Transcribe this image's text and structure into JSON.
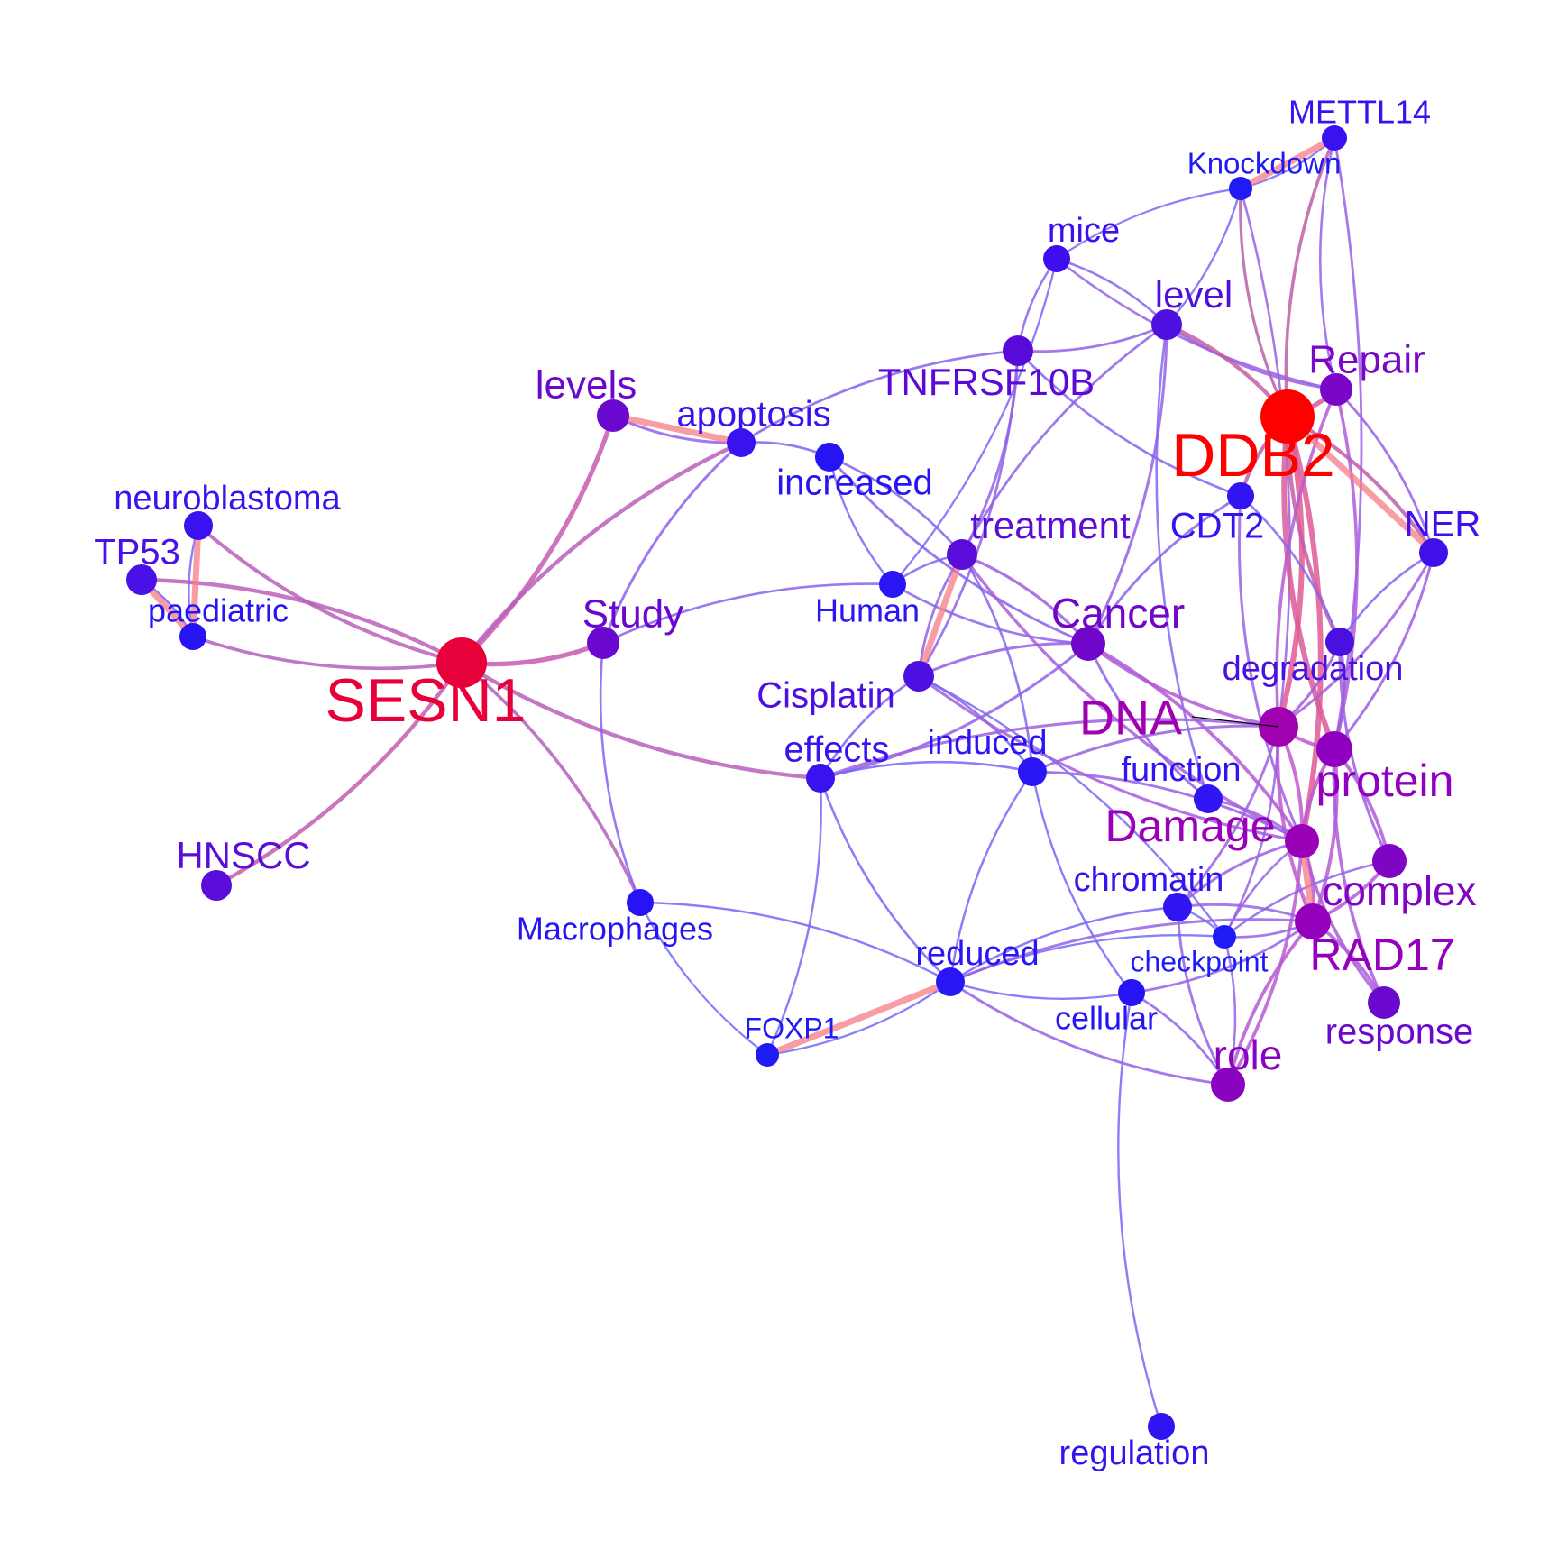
{
  "network": {
    "nodes": [
      {
        "id": "SESN1",
        "label": "SESN1",
        "color": "#e8003a",
        "weight": 1.0
      },
      {
        "id": "DDB2",
        "label": "DDB2",
        "color": "#ff0000",
        "weight": 1.0
      },
      {
        "id": "METTL14",
        "label": "METTL14",
        "color": "#3a12f0",
        "weight": 0.2
      },
      {
        "id": "Knockdown",
        "label": "Knockdown",
        "color": "#1f1bf5",
        "weight": 0.15
      },
      {
        "id": "mice",
        "label": "mice",
        "color": "#3d0ef0",
        "weight": 0.2
      },
      {
        "id": "level",
        "label": "level",
        "color": "#4d10e0",
        "weight": 0.3
      },
      {
        "id": "TNFRSF10B",
        "label": "TNFRSF10B",
        "color": "#5a0ad8",
        "weight": 0.35
      },
      {
        "id": "Repair",
        "label": "Repair",
        "color": "#7a06c8",
        "weight": 0.4
      },
      {
        "id": "levels",
        "label": "levels",
        "color": "#6a08d0",
        "weight": 0.4
      },
      {
        "id": "apoptosis",
        "label": "apoptosis",
        "color": "#3a12f0",
        "weight": 0.3
      },
      {
        "id": "increased",
        "label": "increased",
        "color": "#2614f5",
        "weight": 0.25
      },
      {
        "id": "neuroblastoma",
        "label": "neuroblastoma",
        "color": "#3a12f0",
        "weight": 0.25
      },
      {
        "id": "TP53",
        "label": "TP53",
        "color": "#4a10e8",
        "weight": 0.3
      },
      {
        "id": "paediatric",
        "label": "paediatric",
        "color": "#2614f5",
        "weight": 0.2
      },
      {
        "id": "CDT2",
        "label": "CDT2",
        "color": "#3015f2",
        "weight": 0.25
      },
      {
        "id": "NER",
        "label": "NER",
        "color": "#4010ea",
        "weight": 0.25
      },
      {
        "id": "treatment",
        "label": "treatment",
        "color": "#5a0cd8",
        "weight": 0.35
      },
      {
        "id": "Human",
        "label": "Human",
        "color": "#2a16f5",
        "weight": 0.2
      },
      {
        "id": "Study",
        "label": "Study",
        "color": "#6a08d0",
        "weight": 0.4
      },
      {
        "id": "Cancer",
        "label": "Cancer",
        "color": "#7006c8",
        "weight": 0.45
      },
      {
        "id": "degradation",
        "label": "degradation",
        "color": "#4a10e0",
        "weight": 0.3
      },
      {
        "id": "Cisplatin",
        "label": "Cisplatin",
        "color": "#4d10e0",
        "weight": 0.3
      },
      {
        "id": "DNA",
        "label": "DNA",
        "color": "#a000b0",
        "weight": 0.5
      },
      {
        "id": "protein",
        "label": "protein",
        "color": "#9000c0",
        "weight": 0.5
      },
      {
        "id": "effects",
        "label": "effects",
        "color": "#3a12f0",
        "weight": 0.3
      },
      {
        "id": "induced",
        "label": "induced",
        "color": "#2a16f5",
        "weight": 0.25
      },
      {
        "id": "function",
        "label": "function",
        "color": "#3015f2",
        "weight": 0.25
      },
      {
        "id": "Damage",
        "label": "Damage",
        "color": "#9a00b8",
        "weight": 0.5
      },
      {
        "id": "HNSCC",
        "label": "HNSCC",
        "color": "#5a0cd8",
        "weight": 0.3
      },
      {
        "id": "complex",
        "label": "complex",
        "color": "#8004c4",
        "weight": 0.45
      },
      {
        "id": "chromatin",
        "label": "chromatin",
        "color": "#3015f2",
        "weight": 0.25
      },
      {
        "id": "Macrophages",
        "label": "Macrophages",
        "color": "#2614f5",
        "weight": 0.2
      },
      {
        "id": "RAD17",
        "label": "RAD17",
        "color": "#9500bc",
        "weight": 0.5
      },
      {
        "id": "checkpoint",
        "label": "checkpoint",
        "color": "#1f1bf5",
        "weight": 0.15
      },
      {
        "id": "reduced",
        "label": "reduced",
        "color": "#2a16f5",
        "weight": 0.25
      },
      {
        "id": "cellular",
        "label": "cellular",
        "color": "#2614f5",
        "weight": 0.2
      },
      {
        "id": "FOXP1",
        "label": "FOXP1",
        "color": "#1f1bf5",
        "weight": 0.15
      },
      {
        "id": "response",
        "label": "response",
        "color": "#6a08d0",
        "weight": 0.4
      },
      {
        "id": "role",
        "label": "role",
        "color": "#8a04c0",
        "weight": 0.45
      },
      {
        "id": "regulation",
        "label": "regulation",
        "color": "#3015f2",
        "weight": 0.25
      }
    ],
    "edges": [
      [
        "SESN1",
        "neuroblastoma"
      ],
      [
        "SESN1",
        "TP53"
      ],
      [
        "SESN1",
        "paediatric"
      ],
      [
        "SESN1",
        "levels"
      ],
      [
        "SESN1",
        "apoptosis"
      ],
      [
        "SESN1",
        "Study"
      ],
      [
        "SESN1",
        "HNSCC"
      ],
      [
        "SESN1",
        "effects"
      ],
      [
        "SESN1",
        "Macrophages"
      ],
      [
        "neuroblastoma",
        "paediatric"
      ],
      [
        "TP53",
        "paediatric"
      ],
      [
        "levels",
        "apoptosis"
      ],
      [
        "apoptosis",
        "increased"
      ],
      [
        "apoptosis",
        "Study"
      ],
      [
        "apoptosis",
        "TNFRSF10B"
      ],
      [
        "increased",
        "Human"
      ],
      [
        "increased",
        "treatment"
      ],
      [
        "increased",
        "Cancer"
      ],
      [
        "Study",
        "Human"
      ],
      [
        "Study",
        "Macrophages"
      ],
      [
        "Human",
        "treatment"
      ],
      [
        "Human",
        "Cancer"
      ],
      [
        "mice",
        "Knockdown"
      ],
      [
        "mice",
        "TNFRSF10B"
      ],
      [
        "mice",
        "level"
      ],
      [
        "mice",
        "Repair"
      ],
      [
        "mice",
        "Human"
      ],
      [
        "Knockdown",
        "METTL14"
      ],
      [
        "Knockdown",
        "level"
      ],
      [
        "Knockdown",
        "DDB2"
      ],
      [
        "Knockdown",
        "DNA"
      ],
      [
        "METTL14",
        "DDB2"
      ],
      [
        "METTL14",
        "protein"
      ],
      [
        "METTL14",
        "Repair"
      ],
      [
        "level",
        "TNFRSF10B"
      ],
      [
        "level",
        "Repair"
      ],
      [
        "level",
        "DDB2"
      ],
      [
        "level",
        "treatment"
      ],
      [
        "level",
        "Cancer"
      ],
      [
        "level",
        "function"
      ],
      [
        "TNFRSF10B",
        "treatment"
      ],
      [
        "TNFRSF10B",
        "CDT2"
      ],
      [
        "TNFRSF10B",
        "Cisplatin"
      ],
      [
        "DDB2",
        "Repair"
      ],
      [
        "DDB2",
        "NER"
      ],
      [
        "DDB2",
        "CDT2"
      ],
      [
        "DDB2",
        "DNA"
      ],
      [
        "DDB2",
        "degradation"
      ],
      [
        "DDB2",
        "Damage"
      ],
      [
        "DDB2",
        "protein"
      ],
      [
        "Repair",
        "NER"
      ],
      [
        "Repair",
        "DNA"
      ],
      [
        "Repair",
        "protein"
      ],
      [
        "CDT2",
        "Cancer"
      ],
      [
        "CDT2",
        "degradation"
      ],
      [
        "CDT2",
        "Damage"
      ],
      [
        "NER",
        "DNA"
      ],
      [
        "NER",
        "degradation"
      ],
      [
        "NER",
        "protein"
      ],
      [
        "treatment",
        "Cisplatin"
      ],
      [
        "treatment",
        "Cancer"
      ],
      [
        "treatment",
        "Damage"
      ],
      [
        "treatment",
        "induced"
      ],
      [
        "Cancer",
        "Cisplatin"
      ],
      [
        "Cancer",
        "effects"
      ],
      [
        "Cancer",
        "DNA"
      ],
      [
        "Cancer",
        "Damage"
      ],
      [
        "Cancer",
        "function"
      ],
      [
        "degradation",
        "DNA"
      ],
      [
        "degradation",
        "complex"
      ],
      [
        "degradation",
        "protein"
      ],
      [
        "Cisplatin",
        "effects"
      ],
      [
        "Cisplatin",
        "induced"
      ],
      [
        "Cisplatin",
        "Damage"
      ],
      [
        "Cisplatin",
        "checkpoint"
      ],
      [
        "DNA",
        "protein"
      ],
      [
        "DNA",
        "Damage"
      ],
      [
        "DNA",
        "effects"
      ],
      [
        "DNA",
        "chromatin"
      ],
      [
        "DNA",
        "RAD17"
      ],
      [
        "DNA",
        "checkpoint"
      ],
      [
        "DNA",
        "induced"
      ],
      [
        "protein",
        "complex"
      ],
      [
        "protein",
        "Damage"
      ],
      [
        "protein",
        "RAD17"
      ],
      [
        "protein",
        "response"
      ],
      [
        "effects",
        "induced"
      ],
      [
        "effects",
        "reduced"
      ],
      [
        "effects",
        "FOXP1"
      ],
      [
        "induced",
        "reduced"
      ],
      [
        "induced",
        "Damage"
      ],
      [
        "induced",
        "cellular"
      ],
      [
        "function",
        "Damage"
      ],
      [
        "Damage",
        "chromatin"
      ],
      [
        "Damage",
        "RAD17"
      ],
      [
        "Damage",
        "checkpoint"
      ],
      [
        "Damage",
        "role"
      ],
      [
        "Damage",
        "response"
      ],
      [
        "chromatin",
        "checkpoint"
      ],
      [
        "chromatin",
        "reduced"
      ],
      [
        "chromatin",
        "RAD17"
      ],
      [
        "chromatin",
        "role"
      ],
      [
        "complex",
        "RAD17"
      ],
      [
        "complex",
        "checkpoint"
      ],
      [
        "RAD17",
        "checkpoint"
      ],
      [
        "RAD17",
        "role"
      ],
      [
        "RAD17",
        "response"
      ],
      [
        "checkpoint",
        "reduced"
      ],
      [
        "checkpoint",
        "role"
      ],
      [
        "cellular",
        "regulation"
      ],
      [
        "cellular",
        "role"
      ],
      [
        "cellular",
        "RAD17"
      ],
      [
        "Macrophages",
        "reduced"
      ],
      [
        "Macrophages",
        "FOXP1"
      ],
      [
        "reduced",
        "FOXP1"
      ],
      [
        "reduced",
        "cellular"
      ],
      [
        "reduced",
        "RAD17"
      ],
      [
        "reduced",
        "role"
      ]
    ]
  }
}
